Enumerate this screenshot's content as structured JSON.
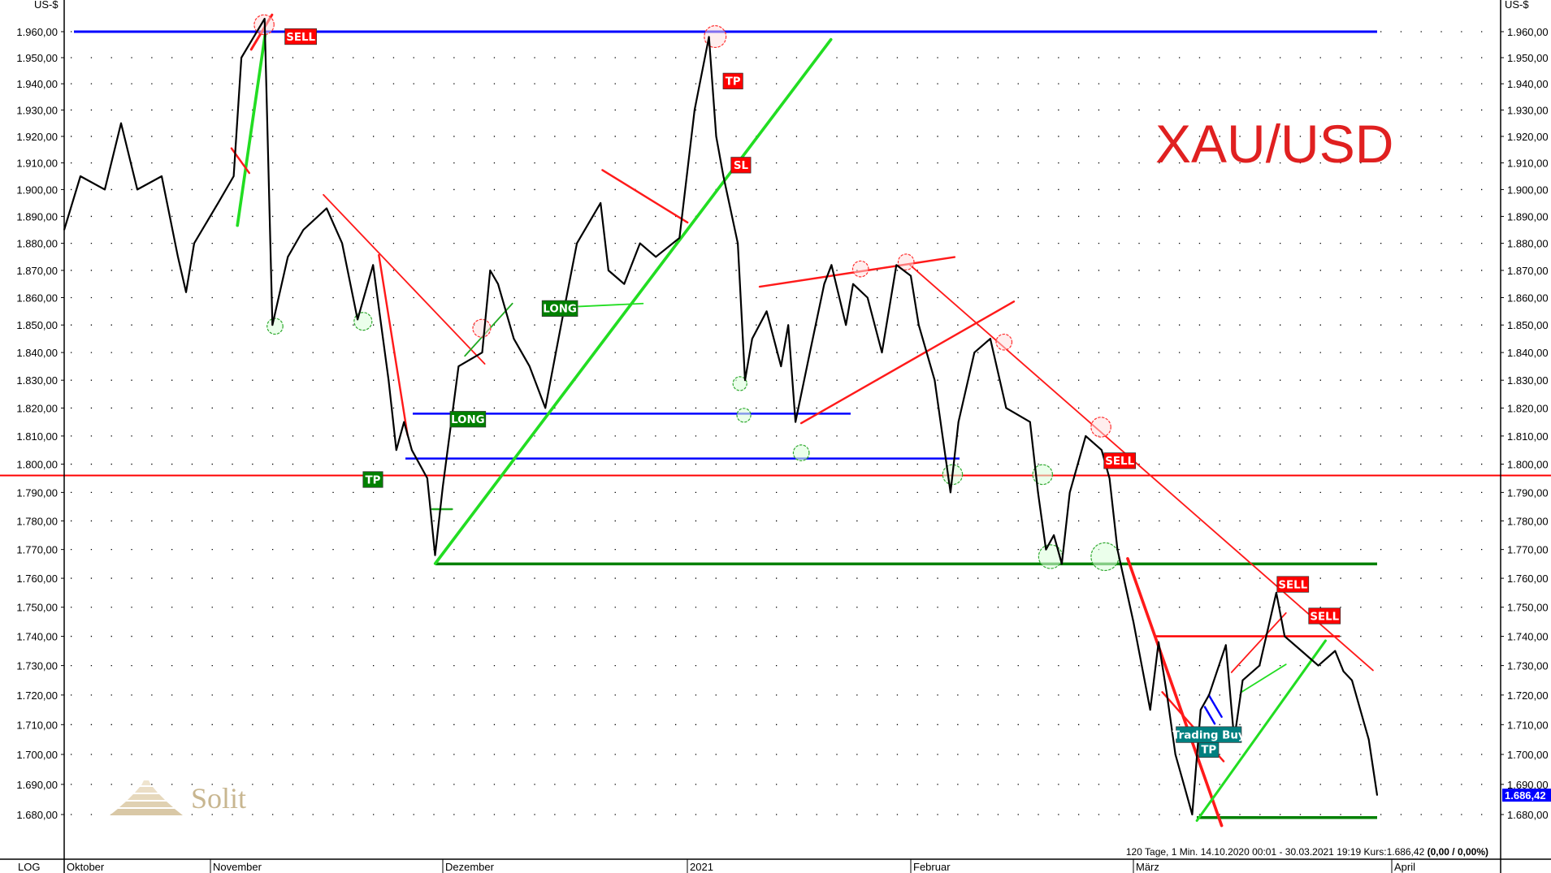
{
  "chart_data": {
    "type": "line",
    "title": "XAU/USD",
    "ylabel": "US-$",
    "scale_label": "LOG",
    "y_scale": "log",
    "ylim": [
      1675,
      1968
    ],
    "grid": true,
    "y_ticks": [
      1680,
      1690,
      1700,
      1710,
      1720,
      1730,
      1740,
      1750,
      1760,
      1770,
      1780,
      1790,
      1800,
      1810,
      1820,
      1830,
      1840,
      1850,
      1860,
      1870,
      1880,
      1890,
      1900,
      1910,
      1920,
      1930,
      1940,
      1950,
      1960
    ],
    "y_tick_labels": [
      "1.680,00",
      "1.690,00",
      "1.700,00",
      "1.710,00",
      "1.720,00",
      "1.730,00",
      "1.740,00",
      "1.750,00",
      "1.760,00",
      "1.770,00",
      "1.780,00",
      "1.790,00",
      "1.800,00",
      "1.810,00",
      "1.820,00",
      "1.830,00",
      "1.840,00",
      "1.850,00",
      "1.860,00",
      "1.870,00",
      "1.880,00",
      "1.890,00",
      "1.900,00",
      "1.910,00",
      "1.920,00",
      "1.930,00",
      "1.940,00",
      "1.950,00",
      "1.960,00"
    ],
    "x_tick_labels": [
      "Oktober",
      "November",
      "Dezember",
      "2021",
      "Februar",
      "März",
      "April"
    ],
    "info_text": "120 Tage, 1 Min. 14.10.2020 00:01 - 30.03.2021 19:19  Kurs:1.686,42",
    "info_change": "(0,00 / 0,00%)",
    "last_price_label": "1.686,42",
    "series": [
      {
        "color": "#000000",
        "points": [
          [
            "2020-10-14",
            1885
          ],
          [
            "2020-10-16",
            1905
          ],
          [
            "2020-10-19",
            1900
          ],
          [
            "2020-10-21",
            1925
          ],
          [
            "2020-10-23",
            1900
          ],
          [
            "2020-10-26",
            1905
          ],
          [
            "2020-10-28",
            1875
          ],
          [
            "2020-10-29",
            1862
          ],
          [
            "2020-10-30",
            1880
          ],
          [
            "2020-11-02",
            1895
          ],
          [
            "2020-11-04",
            1905
          ],
          [
            "2020-11-05",
            1950
          ],
          [
            "2020-11-08",
            1965
          ],
          [
            "2020-11-09",
            1850
          ],
          [
            "2020-11-11",
            1875
          ],
          [
            "2020-11-13",
            1885
          ],
          [
            "2020-11-16",
            1893
          ],
          [
            "2020-11-18",
            1880
          ],
          [
            "2020-11-20",
            1852
          ],
          [
            "2020-11-22",
            1872
          ],
          [
            "2020-11-24",
            1830
          ],
          [
            "2020-11-25",
            1805
          ],
          [
            "2020-11-26",
            1815
          ],
          [
            "2020-11-27",
            1805
          ],
          [
            "2020-11-29",
            1795
          ],
          [
            "2020-11-30",
            1768
          ],
          [
            "2020-12-01",
            1792
          ],
          [
            "2020-12-03",
            1835
          ],
          [
            "2020-12-06",
            1840
          ],
          [
            "2020-12-07",
            1870
          ],
          [
            "2020-12-08",
            1865
          ],
          [
            "2020-12-10",
            1845
          ],
          [
            "2020-12-12",
            1835
          ],
          [
            "2020-12-14",
            1820
          ],
          [
            "2020-12-16",
            1850
          ],
          [
            "2020-12-18",
            1880
          ],
          [
            "2020-12-21",
            1895
          ],
          [
            "2020-12-22",
            1870
          ],
          [
            "2020-12-24",
            1865
          ],
          [
            "2020-12-26",
            1880
          ],
          [
            "2020-12-28",
            1875
          ],
          [
            "2020-12-31",
            1882
          ],
          [
            "2021-01-02",
            1930
          ],
          [
            "2021-01-04",
            1958
          ],
          [
            "2021-01-05",
            1920
          ],
          [
            "2021-01-06",
            1905
          ],
          [
            "2021-01-08",
            1880
          ],
          [
            "2021-01-09",
            1830
          ],
          [
            "2021-01-10",
            1845
          ],
          [
            "2021-01-12",
            1855
          ],
          [
            "2021-01-14",
            1835
          ],
          [
            "2021-01-15",
            1850
          ],
          [
            "2021-01-16",
            1815
          ],
          [
            "2021-01-18",
            1840
          ],
          [
            "2021-01-20",
            1865
          ],
          [
            "2021-01-21",
            1872
          ],
          [
            "2021-01-23",
            1850
          ],
          [
            "2021-01-24",
            1865
          ],
          [
            "2021-01-26",
            1860
          ],
          [
            "2021-01-28",
            1840
          ],
          [
            "2021-01-30",
            1872
          ],
          [
            "2021-02-01",
            1868
          ],
          [
            "2021-02-02",
            1850
          ],
          [
            "2021-02-04",
            1830
          ],
          [
            "2021-02-06",
            1790
          ],
          [
            "2021-02-07",
            1815
          ],
          [
            "2021-02-09",
            1840
          ],
          [
            "2021-02-11",
            1845
          ],
          [
            "2021-02-13",
            1820
          ],
          [
            "2021-02-16",
            1815
          ],
          [
            "2021-02-17",
            1790
          ],
          [
            "2021-02-18",
            1770
          ],
          [
            "2021-02-19",
            1775
          ],
          [
            "2021-02-20",
            1765
          ],
          [
            "2021-02-21",
            1790
          ],
          [
            "2021-02-23",
            1810
          ],
          [
            "2021-02-25",
            1805
          ],
          [
            "2021-02-26",
            1795
          ],
          [
            "2021-02-27",
            1770
          ],
          [
            "2021-03-01",
            1745
          ],
          [
            "2021-03-02",
            1730
          ],
          [
            "2021-03-03",
            1715
          ],
          [
            "2021-03-04",
            1738
          ],
          [
            "2021-03-05",
            1720
          ],
          [
            "2021-03-06",
            1700
          ],
          [
            "2021-03-07",
            1690
          ],
          [
            "2021-03-08",
            1680
          ],
          [
            "2021-03-09",
            1715
          ],
          [
            "2021-03-10",
            1720
          ],
          [
            "2021-03-12",
            1737
          ],
          [
            "2021-03-13",
            1705
          ],
          [
            "2021-03-14",
            1725
          ],
          [
            "2021-03-16",
            1730
          ],
          [
            "2021-03-18",
            1755
          ],
          [
            "2021-03-19",
            1740
          ],
          [
            "2021-03-21",
            1735
          ],
          [
            "2021-03-23",
            1730
          ],
          [
            "2021-03-25",
            1735
          ],
          [
            "2021-03-26",
            1728
          ],
          [
            "2021-03-27",
            1725
          ],
          [
            "2021-03-29",
            1705
          ],
          [
            "2021-03-30",
            1686.42
          ]
        ]
      }
    ],
    "horizontal_levels": [
      {
        "price": 1960,
        "color": "#0000ff"
      },
      {
        "price": 1796,
        "color": "#ff0000"
      },
      {
        "price": 1765,
        "color": "#008000"
      },
      {
        "price": 1679,
        "color": "#008000"
      },
      {
        "price": 1818,
        "color": "#0000ff"
      },
      {
        "price": 1802,
        "color": "#0000ff"
      },
      {
        "price": 1740,
        "color": "#ff0000"
      }
    ],
    "annotations": [
      {
        "text": "SELL",
        "color": "#ff0000"
      },
      {
        "text": "TP",
        "color": "#ff0000"
      },
      {
        "text": "SL",
        "color": "#ff0000"
      },
      {
        "text": "LONG",
        "color": "#008000"
      },
      {
        "text": "LONG",
        "color": "#008000"
      },
      {
        "text": "TP",
        "color": "#008000"
      },
      {
        "text": "SELL",
        "color": "#ff0000"
      },
      {
        "text": "SELL",
        "color": "#ff0000"
      },
      {
        "text": "SELL",
        "color": "#ff0000"
      },
      {
        "text": "TP",
        "color": "#008080"
      },
      {
        "text": "Trading Buy",
        "color": "#008080"
      }
    ],
    "title_color": "#e02020",
    "last_price_color": "#0000ff"
  },
  "logo": {
    "text": "Solit"
  }
}
